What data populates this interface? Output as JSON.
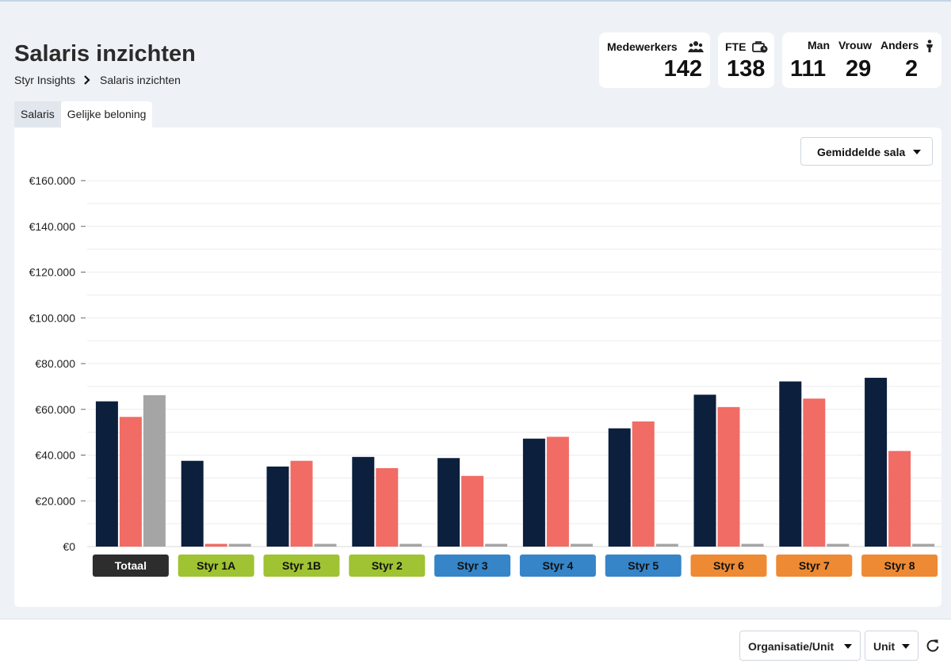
{
  "header": {
    "title": "Salaris inzichten",
    "breadcrumb": [
      "Styr Insights",
      "Salaris inzichten"
    ]
  },
  "stats": {
    "employees": {
      "label": "Medewerkers",
      "value": "142",
      "icon": "people-icon"
    },
    "fte": {
      "label": "FTE",
      "value": "138",
      "icon": "briefcase-clock-icon"
    },
    "gender": {
      "man_label": "Man",
      "man_value": "111",
      "vrouw_label": "Vrouw",
      "vrouw_value": "29",
      "anders_label": "Anders",
      "anders_value": "2",
      "icon": "person-icon"
    }
  },
  "tabs": [
    {
      "label": "Salaris",
      "active": false
    },
    {
      "label": "Gelijke beloning",
      "active": true
    }
  ],
  "metric_select": {
    "value": "Gemiddelde salaris"
  },
  "chart_data": {
    "type": "bar",
    "categories": [
      "Totaal",
      "Styr 1A",
      "Styr 1B",
      "Styr 2",
      "Styr 3",
      "Styr 4",
      "Styr 5",
      "Styr 6",
      "Styr 7",
      "Styr 8"
    ],
    "category_colors": [
      "#2d2d2d",
      "#9fc332",
      "#9fc332",
      "#9fc332",
      "#3585c8",
      "#3585c8",
      "#3585c8",
      "#ee8a33",
      "#ee8a33",
      "#ee8a33"
    ],
    "series": [
      {
        "color": "#0c1f3d",
        "values": [
          63500,
          37500,
          35000,
          39200,
          38700,
          47200,
          51700,
          66400,
          72200,
          73800
        ]
      },
      {
        "color": "#f06c65",
        "values": [
          56700,
          1200,
          37500,
          34300,
          30900,
          48000,
          54700,
          61000,
          64700,
          41800
        ]
      },
      {
        "color": "#a5a5a5",
        "values": [
          66200,
          1200,
          1200,
          1200,
          1200,
          1200,
          1200,
          1200,
          1200,
          1200
        ]
      }
    ],
    "y_ticks": [
      "€0",
      "€20.000",
      "€40.000",
      "€60.000",
      "€80.000",
      "€100.000",
      "€120.000",
      "€140.000",
      "€160.000"
    ],
    "ylim": [
      0,
      160000
    ],
    "grid": true
  },
  "footer": {
    "org_select": "Organisatie/Unit",
    "unit_select": "Unit",
    "refresh_icon": "refresh-icon"
  }
}
